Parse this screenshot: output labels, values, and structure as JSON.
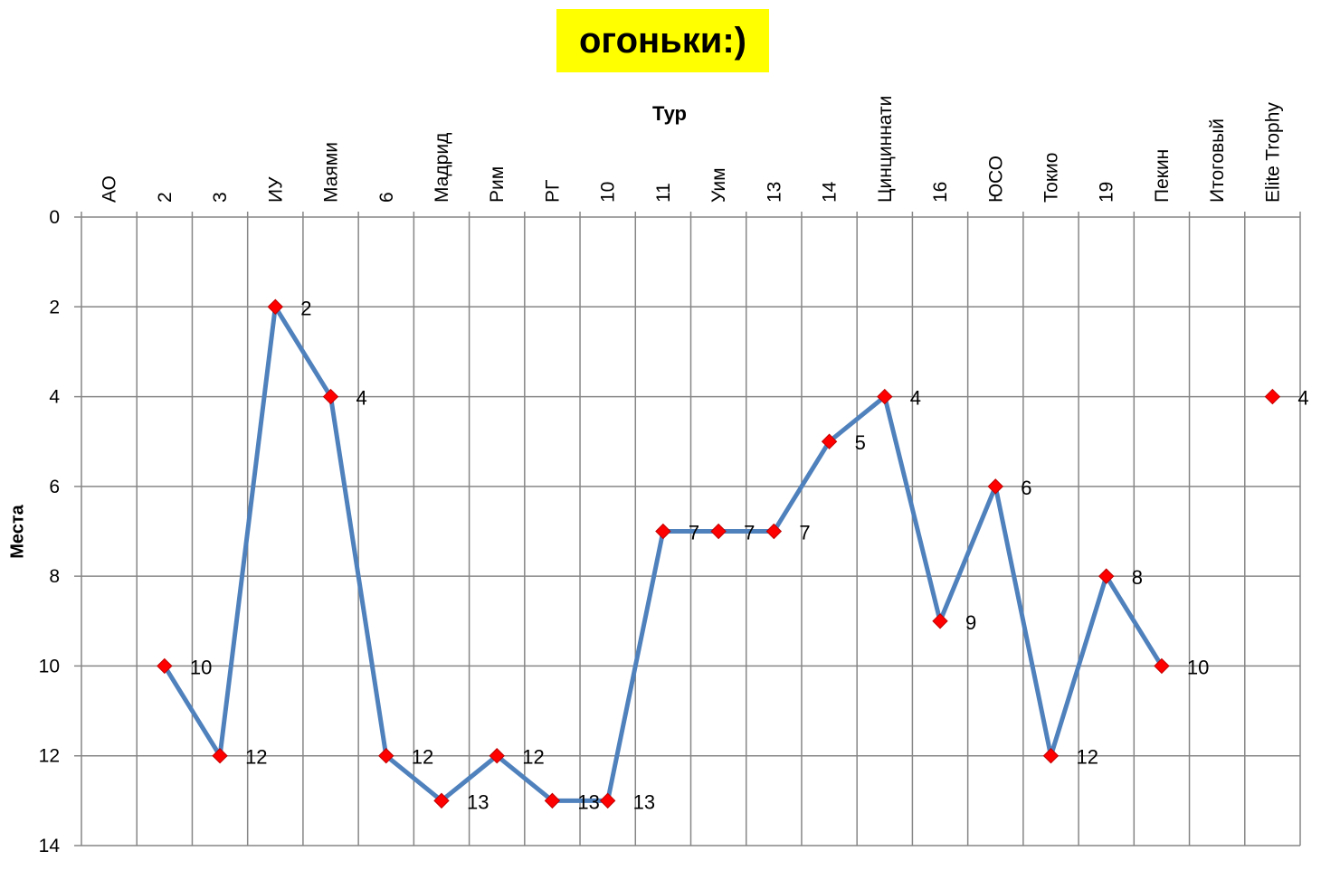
{
  "chart_data": {
    "type": "line",
    "title": "огоньки:)",
    "xlabel": "Тур",
    "ylabel": "Места",
    "categories": [
      "АО",
      "2",
      "3",
      "ИУ",
      "Маями",
      "6",
      "Мадрид",
      "Рим",
      "РГ",
      "10",
      "11",
      "Уим",
      "13",
      "14",
      "Цинциннати",
      "16",
      "ЮСО",
      "Токио",
      "19",
      "Пекин",
      "Итоговый",
      "Elite Trophy"
    ],
    "ylim": [
      0,
      14
    ],
    "y_inverted": true,
    "y_ticks": [
      0,
      2,
      4,
      6,
      8,
      10,
      12,
      14
    ],
    "x_axis_position": "top",
    "grid": true,
    "legend": "none",
    "series": [
      {
        "values": [
          null,
          10,
          12,
          2,
          4,
          12,
          13,
          12,
          13,
          13,
          7,
          7,
          7,
          5,
          4,
          9,
          6,
          12,
          8,
          10,
          null,
          4
        ],
        "data_labels": true
      }
    ],
    "colors": {
      "line": "#4f81bd",
      "marker": "#ff0000",
      "marker_edge": "#c00000",
      "grid": "#868686",
      "title_bg": "#ffff00"
    }
  }
}
